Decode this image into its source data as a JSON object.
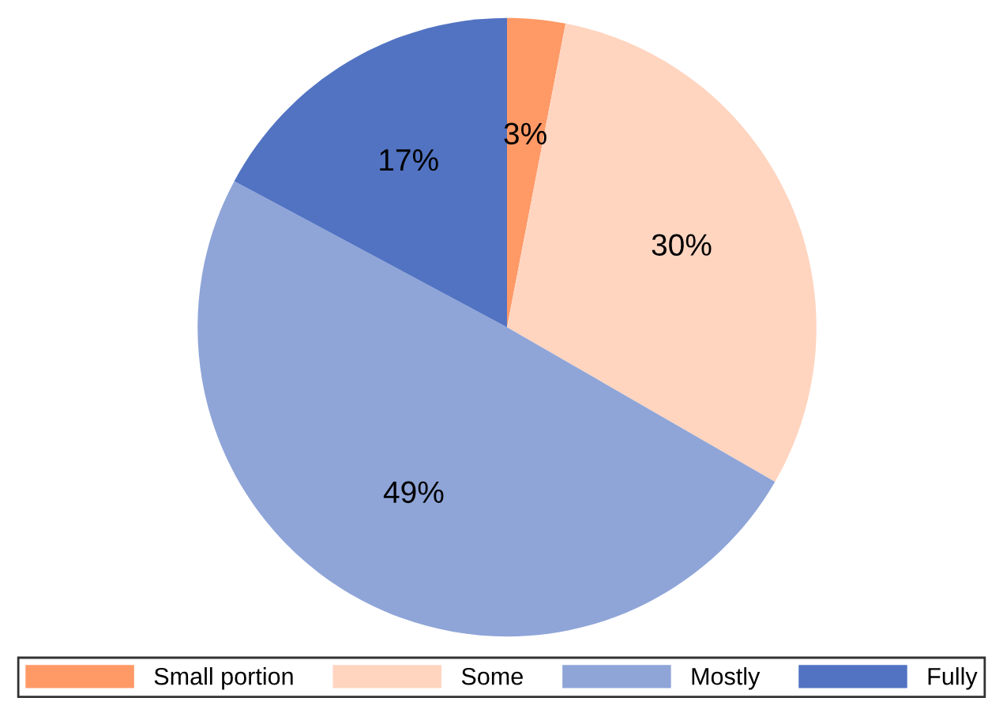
{
  "chart_data": {
    "type": "pie",
    "categories": [
      "Small portion",
      "Some",
      "Mostly",
      "Fully"
    ],
    "values": [
      3,
      30,
      49,
      17
    ],
    "colors": [
      "#ff9966",
      "#ffd5c0",
      "#8fa5d8",
      "#5273c2"
    ],
    "value_labels": [
      "3%",
      "30%",
      "49%",
      "17%"
    ],
    "legend": "bottom"
  }
}
